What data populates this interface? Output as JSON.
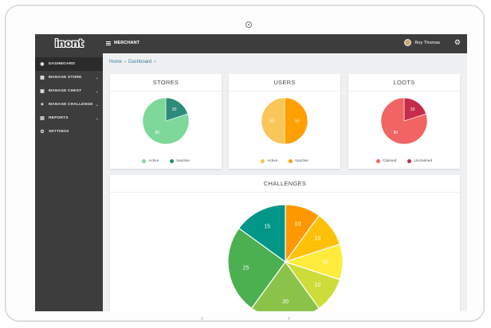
{
  "brand": {
    "logo_text": "inont"
  },
  "topbar": {
    "menu_label": "MERCHANT",
    "user_name": "Roy Thomas"
  },
  "sidebar": {
    "items": [
      {
        "label": "DASHBOARD",
        "icon": "dashboard-icon",
        "active": true,
        "chevron": false
      },
      {
        "label": "MANAGE STORE",
        "icon": "store-icon",
        "active": false,
        "chevron": true
      },
      {
        "label": "MANAGE CHEST",
        "icon": "chest-icon",
        "active": false,
        "chevron": true
      },
      {
        "label": "MANAGE CHALLENGE",
        "icon": "challenge-icon",
        "active": false,
        "chevron": true
      },
      {
        "label": "REPORTS",
        "icon": "reports-icon",
        "active": false,
        "chevron": true
      },
      {
        "label": "SETTINGS",
        "icon": "settings-icon",
        "active": false,
        "chevron": false
      }
    ]
  },
  "breadcrumb": {
    "home": "Home",
    "current": "Dashboard",
    "sep": "›"
  },
  "cards": {
    "stores": {
      "title": "STORES",
      "slices": [
        {
          "label": "Active",
          "value": 80,
          "color": "#7dd89a"
        },
        {
          "label": "Inactive",
          "value": 20,
          "color": "#2e8a7a"
        }
      ]
    },
    "users": {
      "title": "USERS",
      "slices": [
        {
          "label": "Active",
          "value": 50,
          "color": "#f9c659"
        },
        {
          "label": "Inactive",
          "value": 50,
          "color": "#ffa000"
        }
      ]
    },
    "loots": {
      "title": "LOOTS",
      "slices": [
        {
          "label": "Claimed",
          "value": 80,
          "color": "#f26464"
        },
        {
          "label": "Unclaimed",
          "value": 20,
          "color": "#c62c4a"
        }
      ]
    },
    "challenges": {
      "title": "CHALLENGES",
      "slices": [
        {
          "value": 10,
          "color": "#ff9800"
        },
        {
          "value": 10,
          "color": "#ffc107"
        },
        {
          "value": 10,
          "color": "#ffeb3b"
        },
        {
          "value": 10,
          "color": "#cddc39"
        },
        {
          "value": 20,
          "color": "#8bc34a"
        },
        {
          "value": 25,
          "color": "#4caf50"
        },
        {
          "value": 15,
          "color": "#009688"
        }
      ]
    }
  },
  "chart_data": [
    {
      "type": "pie",
      "title": "STORES",
      "categories": [
        "Active",
        "Inactive"
      ],
      "values": [
        80,
        20
      ]
    },
    {
      "type": "pie",
      "title": "USERS",
      "categories": [
        "Active",
        "Inactive"
      ],
      "values": [
        50,
        50
      ]
    },
    {
      "type": "pie",
      "title": "LOOTS",
      "categories": [
        "Claimed",
        "Unclaimed"
      ],
      "values": [
        80,
        20
      ]
    },
    {
      "type": "pie",
      "title": "CHALLENGES",
      "values": [
        10,
        10,
        10,
        10,
        20,
        25,
        15
      ]
    }
  ]
}
